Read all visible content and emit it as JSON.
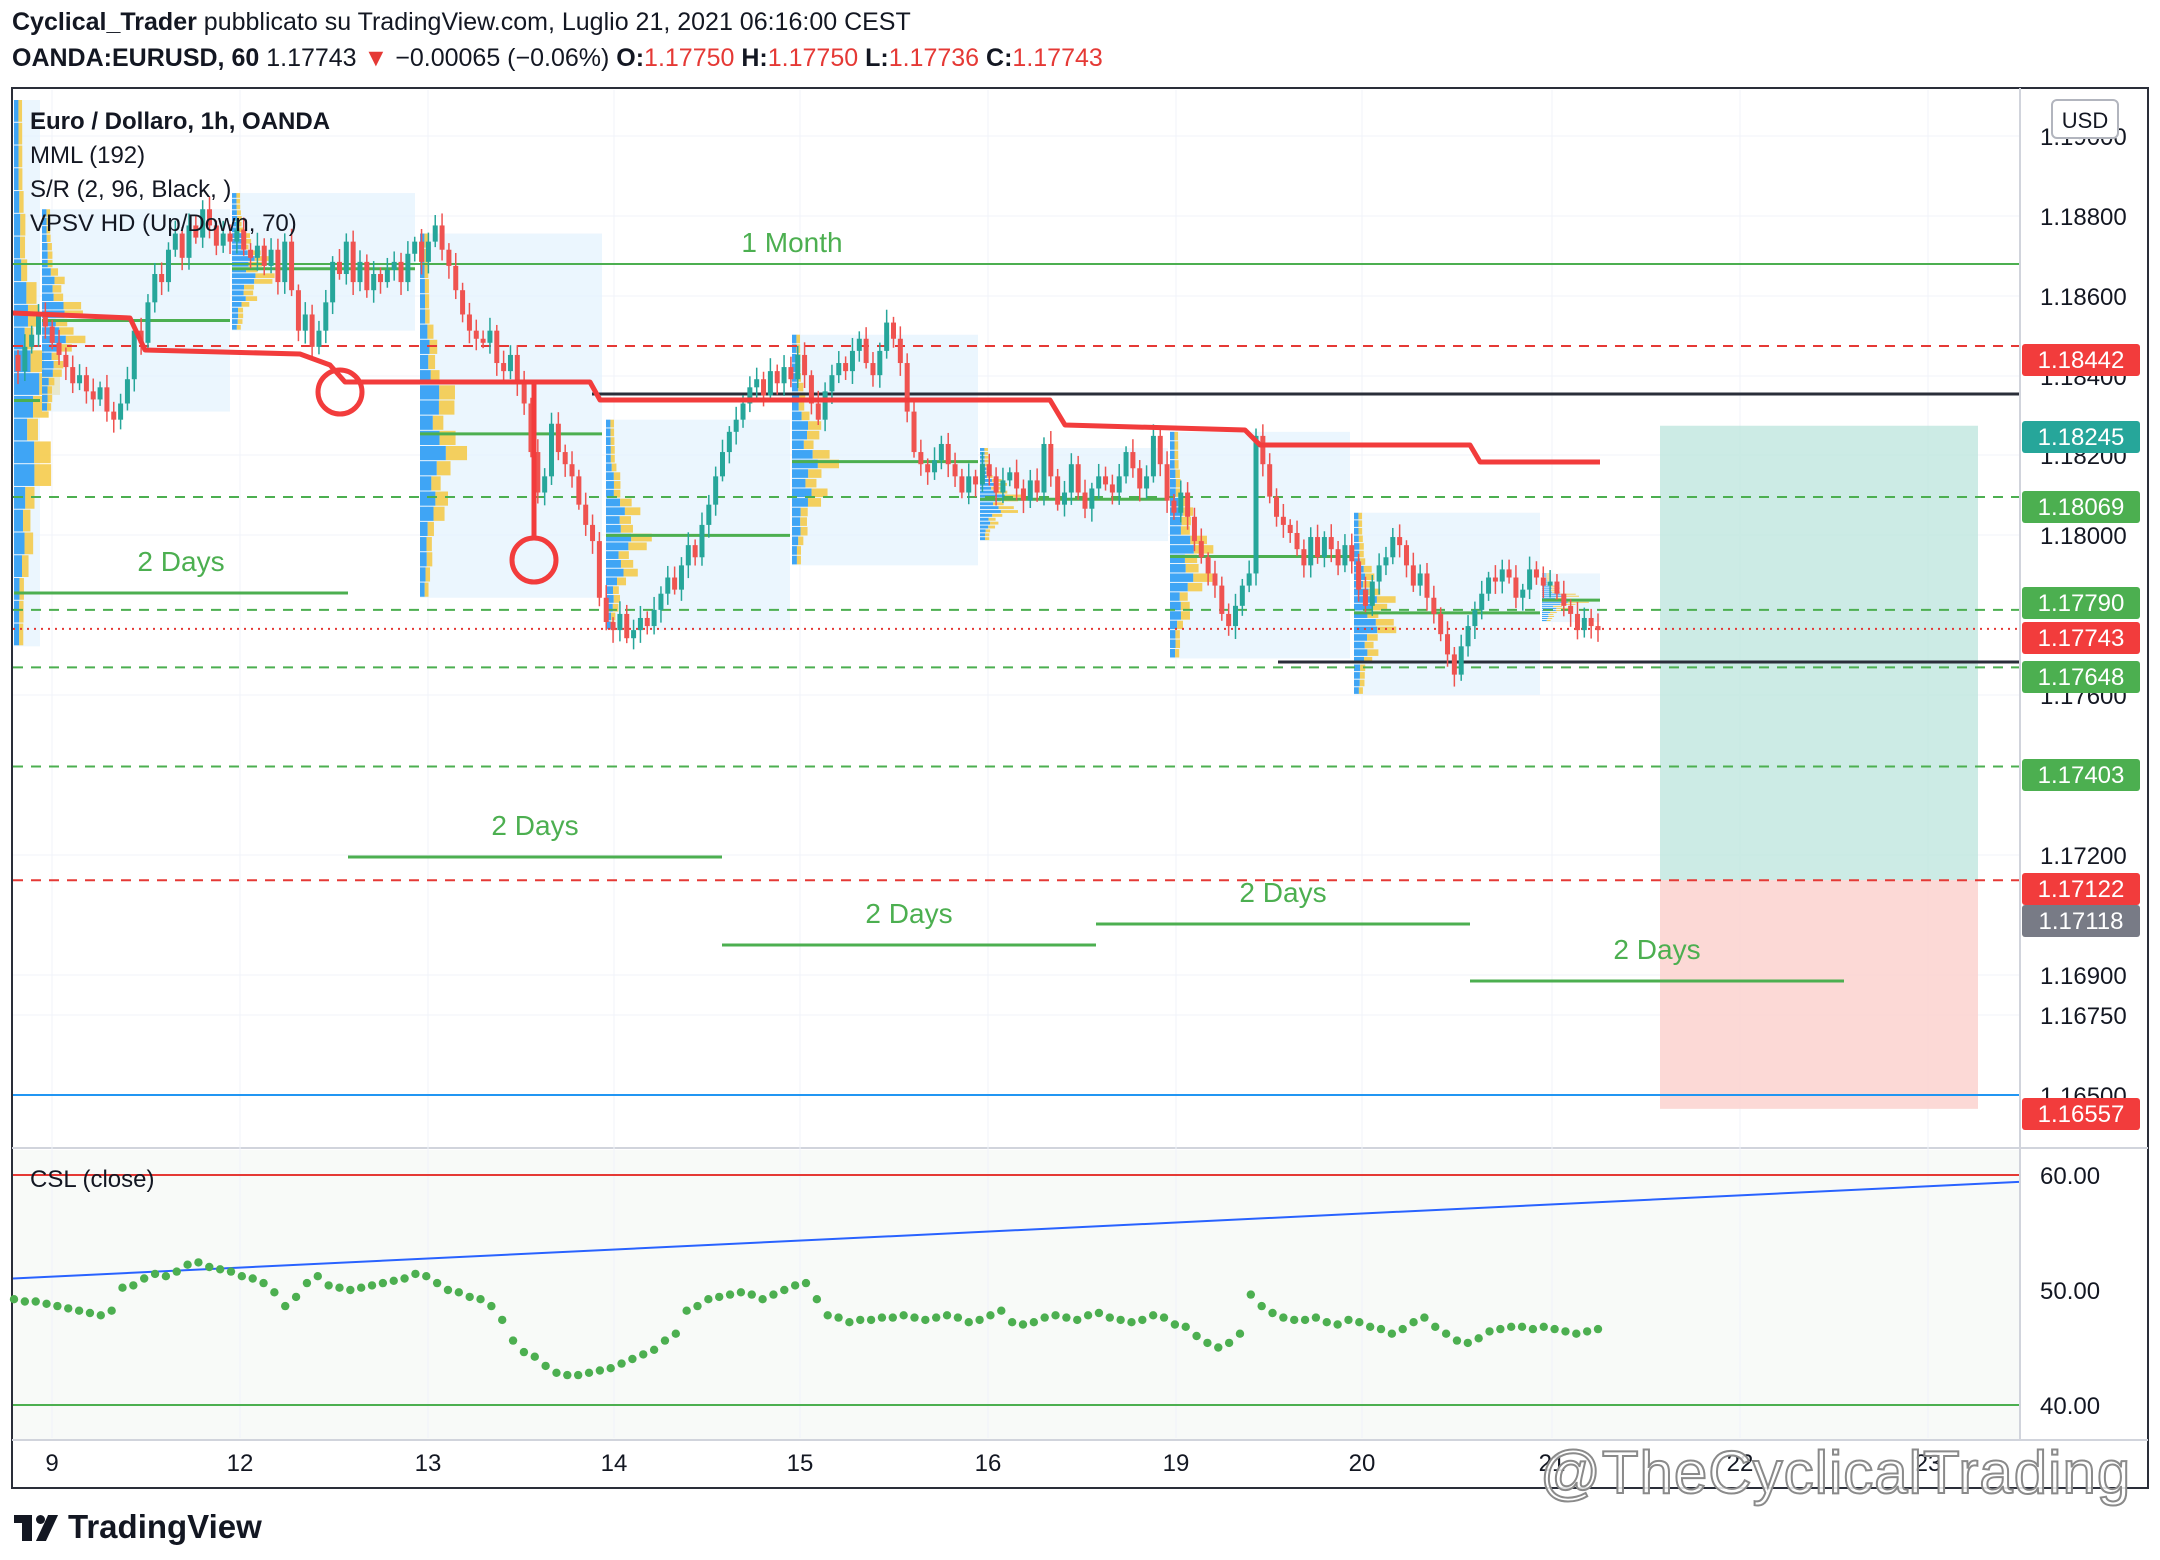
{
  "header": {
    "author": "Cyclical_Trader",
    "published_text": "pubblicato su TradingView.com, Luglio 21, 2021 06:16:00 CEST",
    "symbol": "OANDA:EURUSD, 60",
    "last_price": "1.17743",
    "change_arrow": "▼",
    "change": "−0.00065 (−0.06%)",
    "open_label": "O:",
    "open": "1.17750",
    "high_label": "H:",
    "high": "1.17750",
    "low_label": "L:",
    "low": "1.17736",
    "close_label": "C:",
    "close": "1.17743"
  },
  "colors": {
    "up": "#26a69a",
    "down": "#ef5350",
    "mml": "#f23c3c",
    "level_green": "#4caf50",
    "level_red": "#e53935",
    "sr_black": "#2a2e39",
    "csl_line": "#2962ff",
    "cyan_line": "#2196f3",
    "profile_blue": "#2196f3",
    "profile_yellow": "#f5c842",
    "profile_bg": "#e3f2fd",
    "target_zone": "#bfe6de",
    "stop_zone": "#fbd2cf"
  },
  "legend": {
    "title": "Euro / Dollaro, 1h, OANDA",
    "indicators": [
      "MML (192)",
      "S/R (2, 96, Black, )",
      "VPSV HD (Up/Down, 70)"
    ]
  },
  "currency_button": "USD",
  "pane_label": "CSL (close)",
  "footer": {
    "brand": "TradingView",
    "watermark": "@TheCyclicalTrading",
    "logo_icon": "tradingview-logo-icon"
  },
  "chart_data": [
    {
      "type": "candlestick",
      "title": "Euro / Dollaro, 1h, OANDA",
      "ylim": [
        1.1645,
        1.1915
      ],
      "y_ticks": [
        "1.19000",
        "1.18800",
        "1.18600",
        "1.18400",
        "1.18200",
        "1.18000",
        "1.17600",
        "1.17200",
        "1.16900",
        "1.16750",
        "1.16500"
      ],
      "x_ticks": [
        "9",
        "12",
        "13",
        "14",
        "15",
        "16",
        "19",
        "20",
        "21",
        "22",
        "23"
      ],
      "price_badges": [
        {
          "label": "1.18442",
          "color": "#f23c3c"
        },
        {
          "label": "1.18245",
          "color": "#26a69a"
        },
        {
          "label": "1.18069",
          "color": "#4caf50"
        },
        {
          "label": "1.17790",
          "color": "#4caf50"
        },
        {
          "label": "1.17743",
          "color": "#f23c3c"
        },
        {
          "label": "1.17648",
          "color": "#4caf50"
        },
        {
          "label": "1.17403",
          "color": "#4caf50"
        },
        {
          "label": "1.17122",
          "color": "#f23c3c"
        },
        {
          "label": "1.17118",
          "color": "#787b86"
        },
        {
          "label": "1.16557",
          "color": "#f23c3c"
        }
      ],
      "level_labels": [
        "1 Month",
        "2 Days",
        "2 Days",
        "2 Days",
        "2 Days",
        "2 Days"
      ],
      "closes": [
        1.1838,
        1.1844,
        1.1847,
        1.1852,
        1.1849,
        1.1845,
        1.1842,
        1.1839,
        1.1835,
        1.1837,
        1.1833,
        1.1831,
        1.1834,
        1.1828,
        1.1826,
        1.183,
        1.1836,
        1.1848,
        1.1845,
        1.1855,
        1.1862,
        1.186,
        1.1868,
        1.1872,
        1.1866,
        1.1874,
        1.1871,
        1.1878,
        1.1874,
        1.1869,
        1.1872,
        1.187,
        1.1873,
        1.1868,
        1.1866,
        1.1869,
        1.1864,
        1.1868,
        1.186,
        1.187,
        1.1858,
        1.1848,
        1.1852,
        1.1844,
        1.1848,
        1.1855,
        1.1865,
        1.1862,
        1.187,
        1.186,
        1.1865,
        1.1858,
        1.1862,
        1.186,
        1.1863,
        1.1865,
        1.186,
        1.1867,
        1.187,
        1.1865,
        1.187,
        1.1874,
        1.1868,
        1.1864,
        1.1858,
        1.1852,
        1.1848,
        1.1846,
        1.1845,
        1.1848,
        1.184,
        1.1838,
        1.1842,
        1.1835,
        1.183,
        1.1818,
        1.1808,
        1.1812,
        1.1825,
        1.1818,
        1.1815,
        1.1812,
        1.1805,
        1.18,
        1.1796,
        1.1782,
        1.1776,
        1.1774,
        1.1778,
        1.1772,
        1.1774,
        1.1777,
        1.1775,
        1.1779,
        1.1783,
        1.1787,
        1.1784,
        1.179,
        1.1795,
        1.1792,
        1.18,
        1.1805,
        1.1812,
        1.1818,
        1.1823,
        1.1826,
        1.183,
        1.1834,
        1.1836,
        1.1832,
        1.1838,
        1.1835,
        1.1839,
        1.1836,
        1.1842,
        1.1837,
        1.183,
        1.1826,
        1.1833,
        1.1837,
        1.184,
        1.1838,
        1.1843,
        1.1846,
        1.184,
        1.1837,
        1.1843,
        1.185,
        1.1846,
        1.184,
        1.1828,
        1.1818,
        1.1815,
        1.1813,
        1.1816,
        1.182,
        1.1815,
        1.1812,
        1.1808,
        1.1812,
        1.181,
        1.1815,
        1.1812,
        1.1808,
        1.1811,
        1.1813,
        1.1809,
        1.1806,
        1.1811,
        1.1808,
        1.182,
        1.1812,
        1.1805,
        1.1808,
        1.1815,
        1.1808,
        1.1804,
        1.1809,
        1.1812,
        1.181,
        1.1808,
        1.1812,
        1.1818,
        1.1814,
        1.1809,
        1.1812,
        1.1822,
        1.1815,
        1.1806,
        1.1803,
        1.1808,
        1.1802,
        1.1796,
        1.1792,
        1.1788,
        1.1785,
        1.1778,
        1.1775,
        1.178,
        1.1785,
        1.1788,
        1.1822,
        1.1815,
        1.1807,
        1.1802,
        1.18,
        1.1798,
        1.1794,
        1.179,
        1.1797,
        1.1792,
        1.1797,
        1.1794,
        1.179,
        1.1795,
        1.1791,
        1.1784,
        1.178,
        1.1786,
        1.179,
        1.1792,
        1.1797,
        1.1795,
        1.179,
        1.1785,
        1.1788,
        1.1782,
        1.1778,
        1.1773,
        1.1768,
        1.1763,
        1.177,
        1.1775,
        1.1779,
        1.1783,
        1.1787,
        1.1786,
        1.1789,
        1.1787,
        1.1782,
        1.1784,
        1.1789,
        1.1787,
        1.1785,
        1.1786,
        1.1783,
        1.178,
        1.1778,
        1.1774,
        1.1777,
        1.1775,
        1.1774
      ]
    },
    {
      "type": "line",
      "title": "CSL (close)",
      "ylim": [
        38,
        62
      ],
      "y_ticks": [
        "60.00",
        "50.00",
        "40.00"
      ],
      "series": [
        {
          "values": [
            49.2,
            49.0,
            49.0,
            48.8,
            48.6,
            48.4,
            48.2,
            48.0,
            47.8,
            48.2,
            50.2,
            50.4,
            51.0,
            51.4,
            51.2,
            51.6,
            52.2,
            52.4,
            52.0,
            51.8,
            51.6,
            51.2,
            51.0,
            50.6,
            49.8,
            48.6,
            49.4,
            50.6,
            51.2,
            50.4,
            50.2,
            50.0,
            50.2,
            50.4,
            50.6,
            50.8,
            51.0,
            51.4,
            51.2,
            50.6,
            50.0,
            49.8,
            49.4,
            49.2,
            48.6,
            47.4,
            45.6,
            44.6,
            44.2,
            43.4,
            42.8,
            42.6,
            42.6,
            42.8,
            43.0,
            43.2,
            43.6,
            44.0,
            44.4,
            44.8,
            45.6,
            46.2,
            48.2,
            48.6,
            49.2,
            49.4,
            49.6,
            49.8,
            49.6,
            49.2,
            49.6,
            50.0,
            50.4,
            50.6,
            49.2,
            47.8,
            47.6,
            47.2,
            47.4,
            47.4,
            47.6,
            47.6,
            47.8,
            47.6,
            47.4,
            47.6,
            47.8,
            47.6,
            47.2,
            47.4,
            47.8,
            48.2,
            47.2,
            47.0,
            47.2,
            47.6,
            47.8,
            47.6,
            47.4,
            47.8,
            48.0,
            47.6,
            47.4,
            47.2,
            47.4,
            47.8,
            47.6,
            47.0,
            46.8,
            46.0,
            45.4,
            45.0,
            45.4,
            46.2,
            49.6,
            48.6,
            48.0,
            47.6,
            47.4,
            47.4,
            47.6,
            47.2,
            47.0,
            47.4,
            47.2,
            46.8,
            46.6,
            46.2,
            46.6,
            47.2,
            47.6,
            46.8,
            46.2,
            45.6,
            45.4,
            45.8,
            46.4,
            46.6,
            46.8,
            46.8,
            46.6,
            46.8,
            46.6,
            46.4,
            46.2,
            46.4,
            46.6
          ]
        },
        {
          "values": [
            51.0,
            59.4
          ]
        },
        {
          "values": [
            60.0,
            60.0
          ]
        },
        {
          "values": [
            40.0,
            40.0
          ]
        }
      ]
    }
  ]
}
